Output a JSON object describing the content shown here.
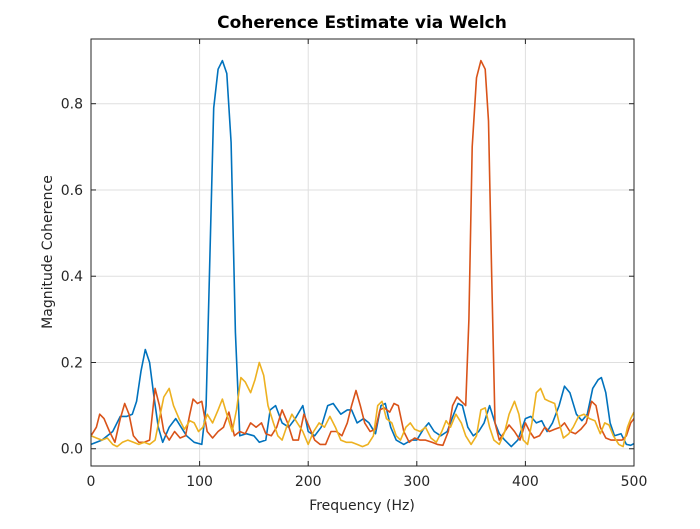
{
  "chart_data": {
    "type": "line",
    "title": "Coherence Estimate via Welch",
    "xlabel": "Frequency (Hz)",
    "ylabel": "Magnitude Coherence",
    "xlim": [
      0,
      500
    ],
    "ylim": [
      -0.04,
      0.95
    ],
    "xticks": [
      0,
      100,
      200,
      300,
      400,
      500
    ],
    "xtick_labels": [
      "0",
      "100",
      "200",
      "300",
      "400",
      "500"
    ],
    "yticks": [
      0,
      0.2,
      0.4,
      0.6,
      0.8
    ],
    "ytick_labels": [
      "0.0",
      "0.2",
      "0.4",
      "0.6",
      "0.8"
    ],
    "grid": true,
    "series": [
      {
        "name": "series-1",
        "color": "#0072BD",
        "points": [
          [
            0,
            0.01
          ],
          [
            10,
            0.02
          ],
          [
            20,
            0.04
          ],
          [
            27,
            0.075
          ],
          [
            33,
            0.075
          ],
          [
            38,
            0.08
          ],
          [
            42,
            0.11
          ],
          [
            46,
            0.18
          ],
          [
            50,
            0.23
          ],
          [
            54,
            0.2
          ],
          [
            58,
            0.12
          ],
          [
            62,
            0.05
          ],
          [
            66,
            0.015
          ],
          [
            72,
            0.05
          ],
          [
            78,
            0.07
          ],
          [
            83,
            0.05
          ],
          [
            88,
            0.03
          ],
          [
            95,
            0.015
          ],
          [
            102,
            0.01
          ],
          [
            106,
            0.1
          ],
          [
            110,
            0.5
          ],
          [
            113,
            0.79
          ],
          [
            117,
            0.88
          ],
          [
            121,
            0.9
          ],
          [
            125,
            0.87
          ],
          [
            129,
            0.71
          ],
          [
            133,
            0.27
          ],
          [
            137,
            0.03
          ],
          [
            143,
            0.035
          ],
          [
            150,
            0.03
          ],
          [
            155,
            0.015
          ],
          [
            161,
            0.02
          ],
          [
            165,
            0.09
          ],
          [
            170,
            0.1
          ],
          [
            176,
            0.06
          ],
          [
            182,
            0.05
          ],
          [
            188,
            0.07
          ],
          [
            195,
            0.1
          ],
          [
            200,
            0.04
          ],
          [
            206,
            0.03
          ],
          [
            212,
            0.05
          ],
          [
            218,
            0.1
          ],
          [
            223,
            0.105
          ],
          [
            230,
            0.08
          ],
          [
            236,
            0.09
          ],
          [
            240,
            0.09
          ],
          [
            245,
            0.06
          ],
          [
            251,
            0.07
          ],
          [
            256,
            0.06
          ],
          [
            262,
            0.035
          ],
          [
            267,
            0.1
          ],
          [
            271,
            0.105
          ],
          [
            276,
            0.05
          ],
          [
            281,
            0.02
          ],
          [
            288,
            0.01
          ],
          [
            295,
            0.02
          ],
          [
            300,
            0.02
          ],
          [
            306,
            0.045
          ],
          [
            311,
            0.06
          ],
          [
            316,
            0.04
          ],
          [
            322,
            0.03
          ],
          [
            328,
            0.04
          ],
          [
            334,
            0.08
          ],
          [
            338,
            0.105
          ],
          [
            342,
            0.1
          ],
          [
            347,
            0.05
          ],
          [
            352,
            0.03
          ],
          [
            357,
            0.04
          ],
          [
            362,
            0.06
          ],
          [
            367,
            0.1
          ],
          [
            372,
            0.06
          ],
          [
            376,
            0.035
          ],
          [
            381,
            0.02
          ],
          [
            387,
            0.005
          ],
          [
            393,
            0.02
          ],
          [
            400,
            0.07
          ],
          [
            405,
            0.075
          ],
          [
            410,
            0.06
          ],
          [
            415,
            0.065
          ],
          [
            420,
            0.04
          ],
          [
            425,
            0.06
          ],
          [
            431,
            0.1
          ],
          [
            436,
            0.145
          ],
          [
            441,
            0.13
          ],
          [
            447,
            0.08
          ],
          [
            452,
            0.065
          ],
          [
            457,
            0.08
          ],
          [
            462,
            0.14
          ],
          [
            467,
            0.16
          ],
          [
            470,
            0.165
          ],
          [
            474,
            0.13
          ],
          [
            478,
            0.06
          ],
          [
            482,
            0.03
          ],
          [
            488,
            0.035
          ],
          [
            493,
            0.01
          ],
          [
            497,
            0.008
          ],
          [
            500,
            0.012
          ]
        ]
      },
      {
        "name": "series-2",
        "color": "#D95319",
        "points": [
          [
            0,
            0.03
          ],
          [
            5,
            0.05
          ],
          [
            8,
            0.08
          ],
          [
            12,
            0.07
          ],
          [
            17,
            0.04
          ],
          [
            22,
            0.015
          ],
          [
            27,
            0.07
          ],
          [
            31,
            0.105
          ],
          [
            35,
            0.08
          ],
          [
            39,
            0.03
          ],
          [
            44,
            0.015
          ],
          [
            49,
            0.015
          ],
          [
            54,
            0.02
          ],
          [
            59,
            0.14
          ],
          [
            63,
            0.1
          ],
          [
            67,
            0.04
          ],
          [
            72,
            0.02
          ],
          [
            77,
            0.04
          ],
          [
            82,
            0.025
          ],
          [
            87,
            0.03
          ],
          [
            91,
            0.08
          ],
          [
            94,
            0.115
          ],
          [
            98,
            0.105
          ],
          [
            102,
            0.11
          ],
          [
            107,
            0.04
          ],
          [
            112,
            0.025
          ],
          [
            117,
            0.04
          ],
          [
            122,
            0.05
          ],
          [
            127,
            0.085
          ],
          [
            132,
            0.03
          ],
          [
            137,
            0.04
          ],
          [
            142,
            0.035
          ],
          [
            147,
            0.06
          ],
          [
            152,
            0.05
          ],
          [
            157,
            0.06
          ],
          [
            161,
            0.035
          ],
          [
            166,
            0.03
          ],
          [
            171,
            0.05
          ],
          [
            176,
            0.09
          ],
          [
            181,
            0.06
          ],
          [
            186,
            0.02
          ],
          [
            191,
            0.02
          ],
          [
            196,
            0.08
          ],
          [
            201,
            0.05
          ],
          [
            206,
            0.02
          ],
          [
            211,
            0.01
          ],
          [
            216,
            0.01
          ],
          [
            221,
            0.04
          ],
          [
            226,
            0.04
          ],
          [
            231,
            0.03
          ],
          [
            236,
            0.06
          ],
          [
            240,
            0.1
          ],
          [
            244,
            0.135
          ],
          [
            248,
            0.1
          ],
          [
            252,
            0.06
          ],
          [
            257,
            0.04
          ],
          [
            262,
            0.045
          ],
          [
            266,
            0.09
          ],
          [
            270,
            0.095
          ],
          [
            275,
            0.085
          ],
          [
            279,
            0.105
          ],
          [
            283,
            0.1
          ],
          [
            288,
            0.04
          ],
          [
            293,
            0.015
          ],
          [
            298,
            0.025
          ],
          [
            303,
            0.02
          ],
          [
            308,
            0.02
          ],
          [
            314,
            0.015
          ],
          [
            319,
            0.01
          ],
          [
            324,
            0.008
          ],
          [
            329,
            0.04
          ],
          [
            333,
            0.1
          ],
          [
            337,
            0.12
          ],
          [
            341,
            0.11
          ],
          [
            345,
            0.1
          ],
          [
            348,
            0.3
          ],
          [
            351,
            0.7
          ],
          [
            355,
            0.86
          ],
          [
            359,
            0.9
          ],
          [
            363,
            0.88
          ],
          [
            366,
            0.76
          ],
          [
            369,
            0.4
          ],
          [
            372,
            0.06
          ],
          [
            376,
            0.02
          ],
          [
            381,
            0.04
          ],
          [
            385,
            0.055
          ],
          [
            390,
            0.04
          ],
          [
            395,
            0.02
          ],
          [
            400,
            0.06
          ],
          [
            404,
            0.04
          ],
          [
            408,
            0.025
          ],
          [
            413,
            0.03
          ],
          [
            418,
            0.05
          ],
          [
            422,
            0.04
          ],
          [
            427,
            0.045
          ],
          [
            432,
            0.05
          ],
          [
            436,
            0.06
          ],
          [
            441,
            0.04
          ],
          [
            446,
            0.035
          ],
          [
            451,
            0.045
          ],
          [
            456,
            0.06
          ],
          [
            461,
            0.11
          ],
          [
            465,
            0.1
          ],
          [
            469,
            0.05
          ],
          [
            474,
            0.025
          ],
          [
            479,
            0.02
          ],
          [
            484,
            0.02
          ],
          [
            489,
            0.02
          ],
          [
            493,
            0.03
          ],
          [
            497,
            0.06
          ],
          [
            500,
            0.07
          ]
        ]
      },
      {
        "name": "series-3",
        "color": "#EDB120",
        "points": [
          [
            0,
            0.03
          ],
          [
            5,
            0.025
          ],
          [
            10,
            0.02
          ],
          [
            15,
            0.025
          ],
          [
            20,
            0.01
          ],
          [
            24,
            0.005
          ],
          [
            29,
            0.015
          ],
          [
            34,
            0.02
          ],
          [
            39,
            0.015
          ],
          [
            44,
            0.01
          ],
          [
            49,
            0.015
          ],
          [
            54,
            0.01
          ],
          [
            59,
            0.02
          ],
          [
            63,
            0.07
          ],
          [
            67,
            0.12
          ],
          [
            72,
            0.14
          ],
          [
            76,
            0.1
          ],
          [
            81,
            0.07
          ],
          [
            86,
            0.045
          ],
          [
            91,
            0.065
          ],
          [
            95,
            0.06
          ],
          [
            99,
            0.04
          ],
          [
            103,
            0.05
          ],
          [
            107,
            0.08
          ],
          [
            112,
            0.06
          ],
          [
            117,
            0.09
          ],
          [
            121,
            0.115
          ],
          [
            125,
            0.08
          ],
          [
            130,
            0.04
          ],
          [
            134,
            0.09
          ],
          [
            138,
            0.165
          ],
          [
            142,
            0.155
          ],
          [
            147,
            0.13
          ],
          [
            151,
            0.16
          ],
          [
            155,
            0.2
          ],
          [
            159,
            0.17
          ],
          [
            163,
            0.1
          ],
          [
            168,
            0.06
          ],
          [
            172,
            0.03
          ],
          [
            176,
            0.02
          ],
          [
            180,
            0.05
          ],
          [
            185,
            0.08
          ],
          [
            190,
            0.06
          ],
          [
            195,
            0.04
          ],
          [
            200,
            0.01
          ],
          [
            205,
            0.04
          ],
          [
            210,
            0.06
          ],
          [
            215,
            0.05
          ],
          [
            220,
            0.075
          ],
          [
            225,
            0.05
          ],
          [
            230,
            0.02
          ],
          [
            235,
            0.015
          ],
          [
            240,
            0.015
          ],
          [
            245,
            0.01
          ],
          [
            250,
            0.005
          ],
          [
            255,
            0.01
          ],
          [
            260,
            0.03
          ],
          [
            264,
            0.1
          ],
          [
            268,
            0.11
          ],
          [
            272,
            0.07
          ],
          [
            277,
            0.06
          ],
          [
            281,
            0.03
          ],
          [
            285,
            0.02
          ],
          [
            290,
            0.05
          ],
          [
            294,
            0.06
          ],
          [
            298,
            0.045
          ],
          [
            303,
            0.04
          ],
          [
            308,
            0.05
          ],
          [
            313,
            0.025
          ],
          [
            318,
            0.015
          ],
          [
            323,
            0.04
          ],
          [
            327,
            0.065
          ],
          [
            331,
            0.05
          ],
          [
            336,
            0.08
          ],
          [
            341,
            0.06
          ],
          [
            345,
            0.03
          ],
          [
            350,
            0.01
          ],
          [
            355,
            0.03
          ],
          [
            359,
            0.09
          ],
          [
            363,
            0.095
          ],
          [
            367,
            0.05
          ],
          [
            371,
            0.02
          ],
          [
            376,
            0.01
          ],
          [
            381,
            0.04
          ],
          [
            385,
            0.08
          ],
          [
            390,
            0.11
          ],
          [
            394,
            0.08
          ],
          [
            398,
            0.02
          ],
          [
            402,
            0.01
          ],
          [
            406,
            0.06
          ],
          [
            410,
            0.13
          ],
          [
            414,
            0.14
          ],
          [
            418,
            0.115
          ],
          [
            422,
            0.11
          ],
          [
            427,
            0.105
          ],
          [
            431,
            0.06
          ],
          [
            435,
            0.025
          ],
          [
            440,
            0.035
          ],
          [
            444,
            0.05
          ],
          [
            449,
            0.075
          ],
          [
            454,
            0.08
          ],
          [
            459,
            0.07
          ],
          [
            464,
            0.065
          ],
          [
            469,
            0.035
          ],
          [
            473,
            0.06
          ],
          [
            477,
            0.055
          ],
          [
            481,
            0.03
          ],
          [
            486,
            0.01
          ],
          [
            490,
            0.005
          ],
          [
            494,
            0.05
          ],
          [
            497,
            0.07
          ],
          [
            500,
            0.085
          ]
        ]
      }
    ]
  }
}
